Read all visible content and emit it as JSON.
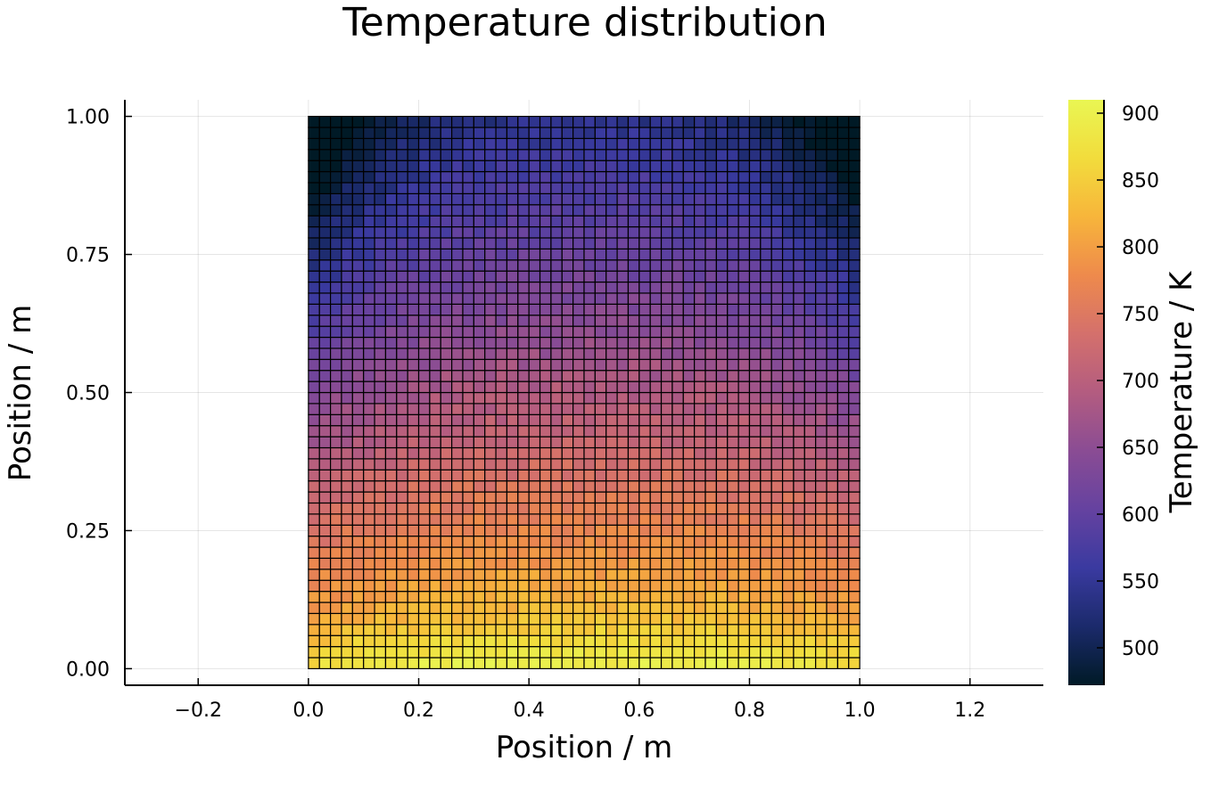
{
  "chart_data": {
    "type": "heatmap",
    "title": "Temperature distribution",
    "xlabel": "Position / m",
    "ylabel": "Position / m",
    "colorbar_label": "Temperature / K",
    "xlim": [
      -0.333,
      1.333
    ],
    "ylim": [
      -0.03,
      1.03
    ],
    "xticks": [
      -0.2,
      0.0,
      0.2,
      0.4,
      0.6,
      0.8,
      1.0,
      1.2
    ],
    "xtick_labels": [
      "−0.2",
      "0.0",
      "0.2",
      "0.4",
      "0.6",
      "0.8",
      "1.0",
      "1.2"
    ],
    "yticks": [
      0.0,
      0.25,
      0.5,
      0.75,
      1.0
    ],
    "ytick_labels": [
      "0.00",
      "0.25",
      "0.50",
      "0.75",
      "1.00"
    ],
    "grid_x_range": [
      0.0,
      1.0
    ],
    "grid_y_range": [
      0.0,
      1.0
    ],
    "grid_cells": [
      50,
      50
    ],
    "row_profile": {
      "y": [
        0.0,
        0.1,
        0.2,
        0.3,
        0.4,
        0.5,
        0.6,
        0.7,
        0.8,
        0.9,
        1.0
      ],
      "temperature": [
        905,
        830,
        790,
        760,
        720,
        690,
        655,
        625,
        595,
        570,
        540
      ]
    },
    "colorbar": {
      "min": 472,
      "max": 910,
      "ticks": [
        500,
        550,
        600,
        650,
        700,
        750,
        800,
        850,
        900
      ],
      "tick_labels": [
        "500",
        "550",
        "600",
        "650",
        "700",
        "750",
        "800",
        "850",
        "900"
      ],
      "colormap": [
        "#001a26",
        "#1b2a6b",
        "#3a3aa0",
        "#6542a0",
        "#8a4c94",
        "#b35c80",
        "#d4706c",
        "#ee8a4c",
        "#f7b53b",
        "#f2dc3c",
        "#e9f653"
      ]
    },
    "grid": true,
    "legend": "none"
  }
}
